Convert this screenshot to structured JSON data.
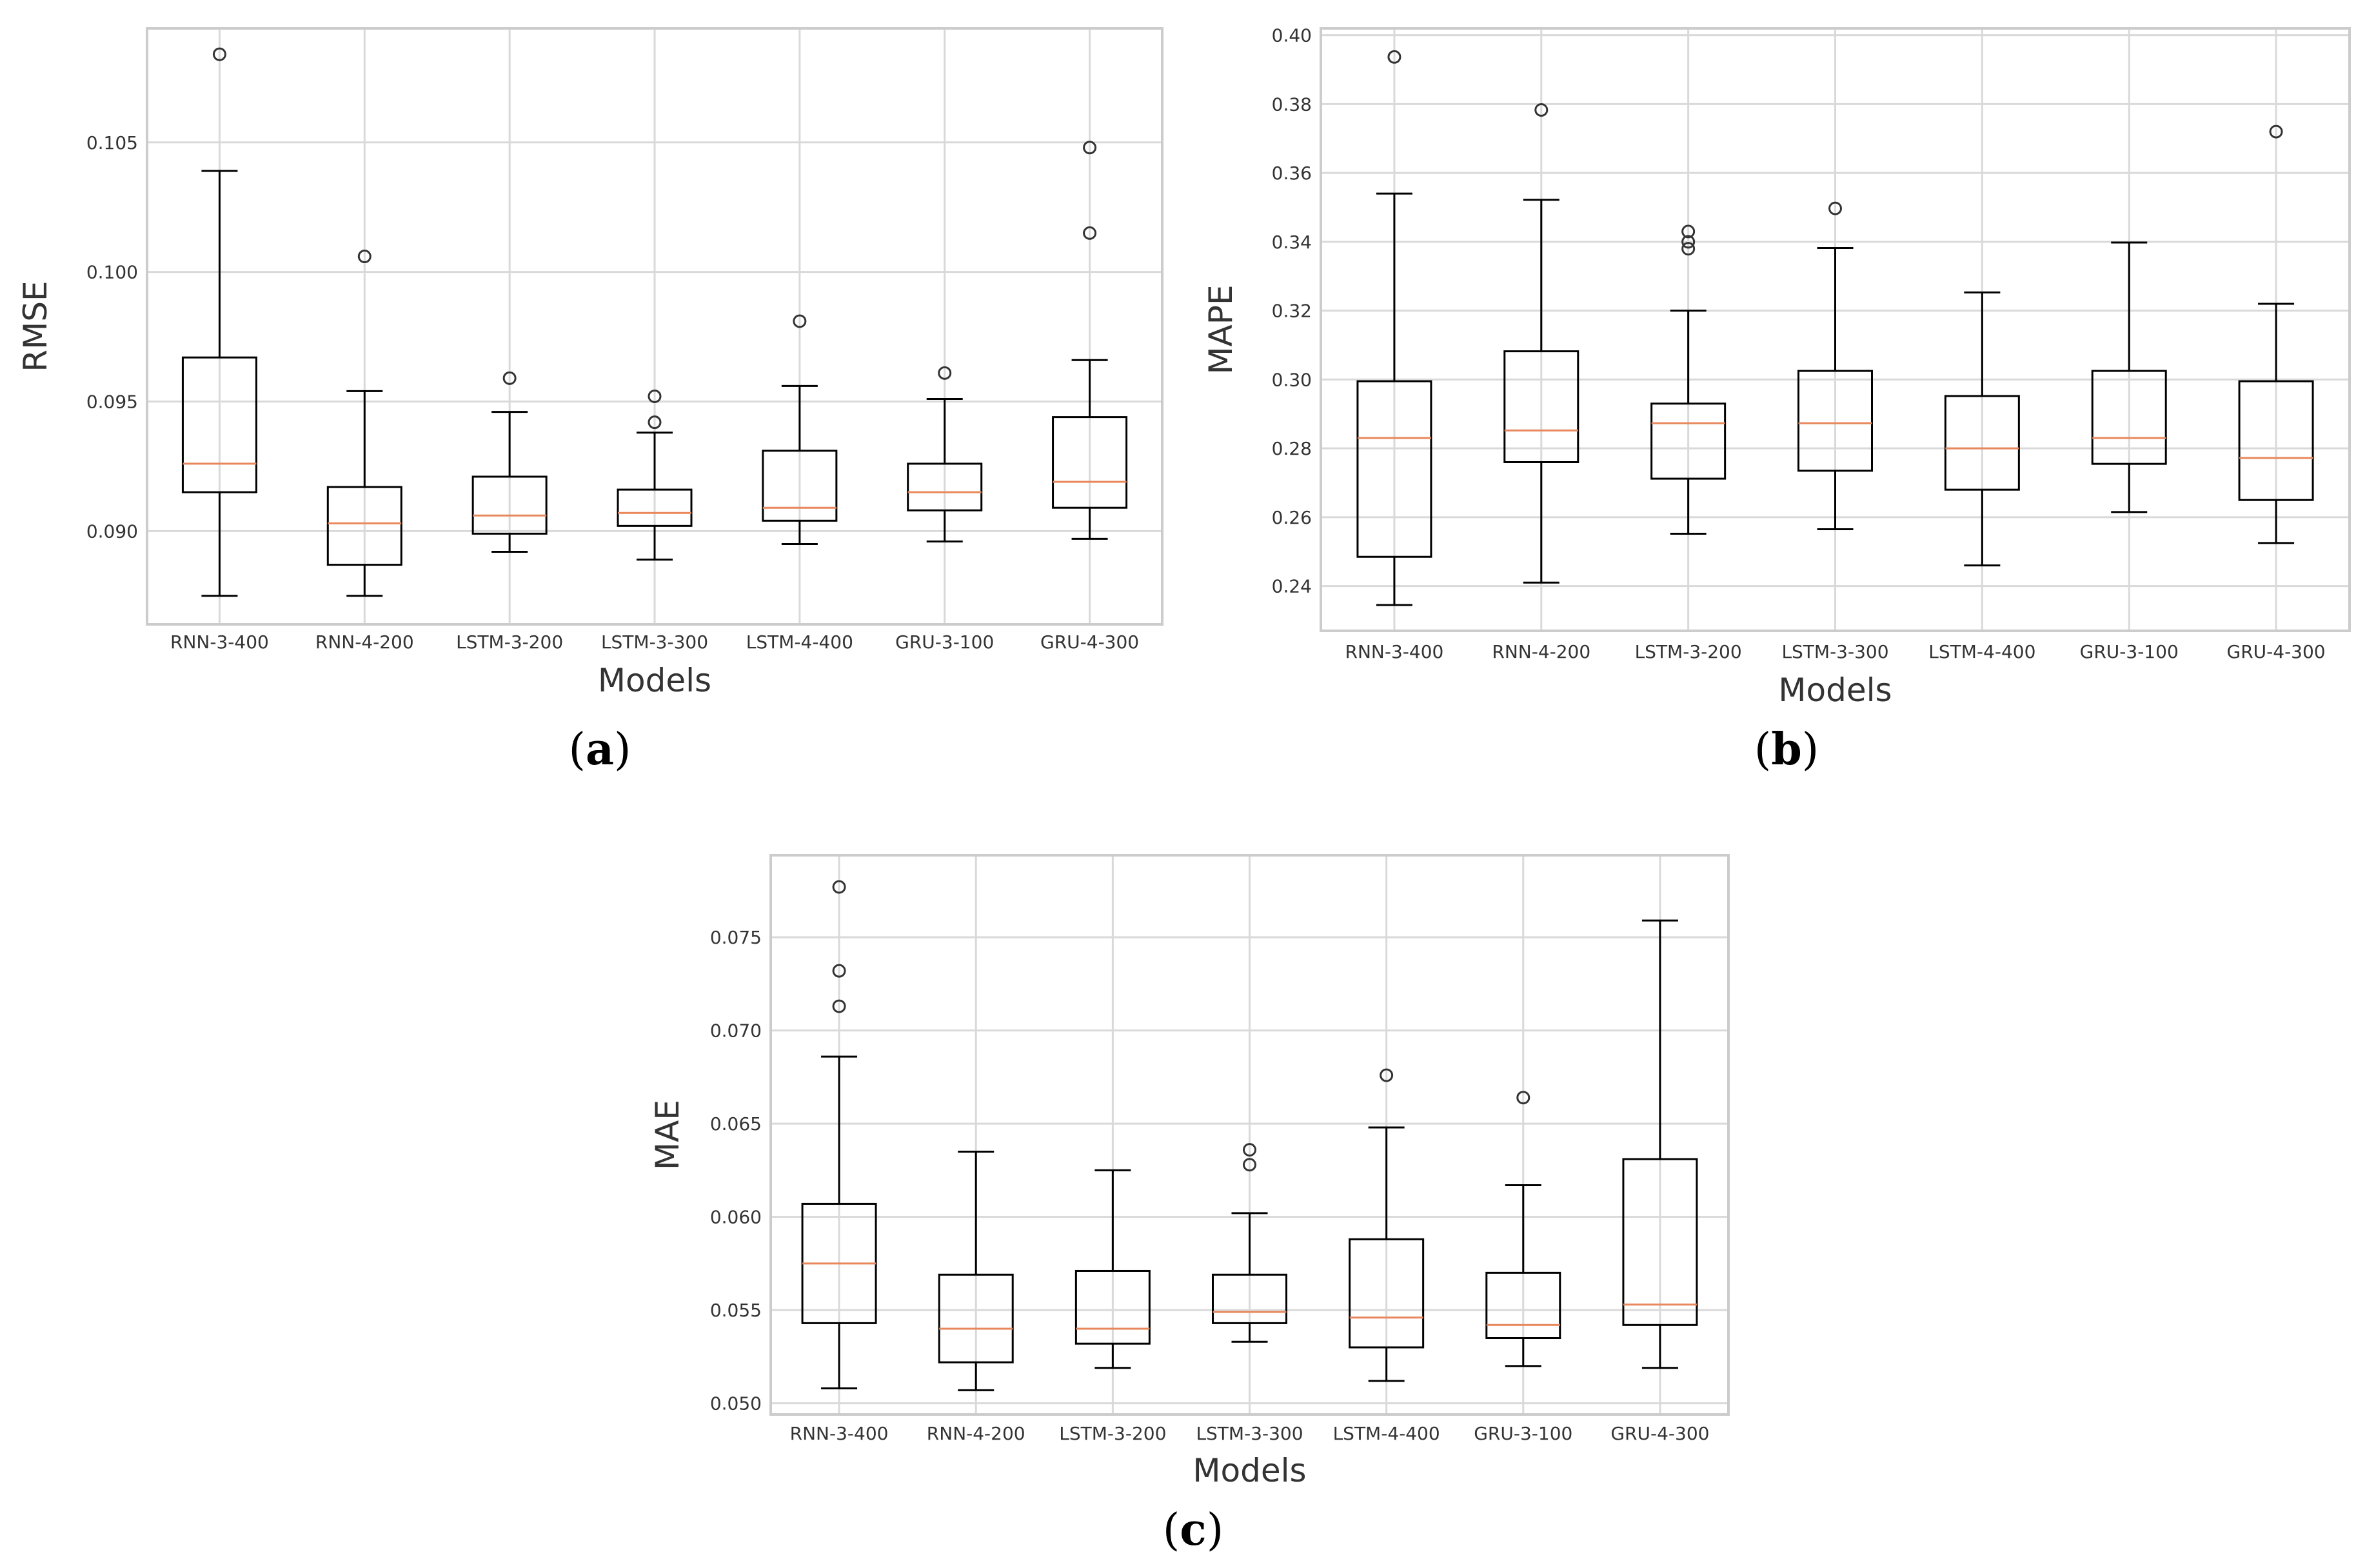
{
  "colors": {
    "median": "#e8875b",
    "box": "#000000",
    "grid": "#d9d9d9",
    "frame": "#cccccc"
  },
  "chart_data": [
    {
      "type": "box",
      "id": "a",
      "caption": "a",
      "xlabel": "Models",
      "ylabel": "RMSE",
      "ylim": [
        0.0864,
        0.1094
      ],
      "yticks": [
        0.09,
        0.095,
        0.1,
        0.105
      ],
      "ytick_labels": [
        "0.090",
        "0.095",
        "0.100",
        "0.105"
      ],
      "categories": [
        "RNN-3-400",
        "RNN-4-200",
        "LSTM-3-200",
        "LSTM-3-300",
        "LSTM-4-400",
        "GRU-3-100",
        "GRU-4-300"
      ],
      "boxes": [
        {
          "whislo": 0.0875,
          "q1": 0.0915,
          "med": 0.0926,
          "q3": 0.0967,
          "whishi": 0.1039,
          "fliers": [
            0.1084
          ]
        },
        {
          "whislo": 0.0875,
          "q1": 0.0887,
          "med": 0.0903,
          "q3": 0.0917,
          "whishi": 0.0954,
          "fliers": [
            0.1006
          ]
        },
        {
          "whislo": 0.0892,
          "q1": 0.0899,
          "med": 0.0906,
          "q3": 0.0921,
          "whishi": 0.0946,
          "fliers": [
            0.0959
          ]
        },
        {
          "whislo": 0.0889,
          "q1": 0.0902,
          "med": 0.0907,
          "q3": 0.0916,
          "whishi": 0.0938,
          "fliers": [
            0.0942,
            0.0952
          ]
        },
        {
          "whislo": 0.0895,
          "q1": 0.0904,
          "med": 0.0909,
          "q3": 0.0931,
          "whishi": 0.0956,
          "fliers": [
            0.0981
          ]
        },
        {
          "whislo": 0.0896,
          "q1": 0.0908,
          "med": 0.0915,
          "q3": 0.0926,
          "whishi": 0.0951,
          "fliers": [
            0.0961
          ]
        },
        {
          "whislo": 0.0897,
          "q1": 0.0909,
          "med": 0.0919,
          "q3": 0.0944,
          "whishi": 0.0966,
          "fliers": [
            0.1015,
            0.1048
          ]
        }
      ]
    },
    {
      "type": "box",
      "id": "b",
      "caption": "b",
      "xlabel": "Models",
      "ylabel": "MAPE",
      "ylim": [
        0.227,
        0.402
      ],
      "yticks": [
        0.24,
        0.26,
        0.28,
        0.3,
        0.32,
        0.34,
        0.36,
        0.38,
        0.4
      ],
      "ytick_labels": [
        "0.24",
        "0.26",
        "0.28",
        "0.30",
        "0.32",
        "0.34",
        "0.36",
        "0.38",
        "0.40"
      ],
      "categories": [
        "RNN-3-400",
        "RNN-4-200",
        "LSTM-3-200",
        "LSTM-3-300",
        "LSTM-4-400",
        "GRU-3-100",
        "GRU-4-300"
      ],
      "boxes": [
        {
          "whislo": 0.2345,
          "q1": 0.2485,
          "med": 0.283,
          "q3": 0.2995,
          "whishi": 0.354,
          "fliers": [
            0.3937
          ]
        },
        {
          "whislo": 0.241,
          "q1": 0.276,
          "med": 0.2852,
          "q3": 0.3082,
          "whishi": 0.3522,
          "fliers": [
            0.3783
          ]
        },
        {
          "whislo": 0.2552,
          "q1": 0.2712,
          "med": 0.2873,
          "q3": 0.293,
          "whishi": 0.32,
          "fliers": [
            0.338,
            0.34,
            0.343
          ]
        },
        {
          "whislo": 0.2565,
          "q1": 0.2735,
          "med": 0.2873,
          "q3": 0.3025,
          "whishi": 0.3382,
          "fliers": [
            0.3497
          ]
        },
        {
          "whislo": 0.246,
          "q1": 0.268,
          "med": 0.28,
          "q3": 0.2952,
          "whishi": 0.3253,
          "fliers": []
        },
        {
          "whislo": 0.2615,
          "q1": 0.2755,
          "med": 0.283,
          "q3": 0.3025,
          "whishi": 0.3398,
          "fliers": []
        },
        {
          "whislo": 0.2525,
          "q1": 0.265,
          "med": 0.2772,
          "q3": 0.2995,
          "whishi": 0.322,
          "fliers": [
            0.372
          ]
        }
      ]
    },
    {
      "type": "box",
      "id": "c",
      "caption": "c",
      "xlabel": "Models",
      "ylabel": "MAE",
      "ylim": [
        0.0494,
        0.0794
      ],
      "yticks": [
        0.05,
        0.055,
        0.06,
        0.065,
        0.07,
        0.075
      ],
      "ytick_labels": [
        "0.050",
        "0.055",
        "0.060",
        "0.065",
        "0.070",
        "0.075"
      ],
      "categories": [
        "RNN-3-400",
        "RNN-4-200",
        "LSTM-3-200",
        "LSTM-3-300",
        "LSTM-4-400",
        "GRU-3-100",
        "GRU-4-300"
      ],
      "boxes": [
        {
          "whislo": 0.0508,
          "q1": 0.0543,
          "med": 0.0575,
          "q3": 0.0607,
          "whishi": 0.0686,
          "fliers": [
            0.0713,
            0.0732,
            0.0777
          ]
        },
        {
          "whislo": 0.0507,
          "q1": 0.0522,
          "med": 0.054,
          "q3": 0.0569,
          "whishi": 0.0635,
          "fliers": []
        },
        {
          "whislo": 0.0519,
          "q1": 0.0532,
          "med": 0.054,
          "q3": 0.0571,
          "whishi": 0.0625,
          "fliers": []
        },
        {
          "whislo": 0.0533,
          "q1": 0.0543,
          "med": 0.0549,
          "q3": 0.0569,
          "whishi": 0.0602,
          "fliers": [
            0.0628,
            0.0636
          ]
        },
        {
          "whislo": 0.0512,
          "q1": 0.053,
          "med": 0.0546,
          "q3": 0.0588,
          "whishi": 0.0648,
          "fliers": [
            0.0676
          ]
        },
        {
          "whislo": 0.052,
          "q1": 0.0535,
          "med": 0.0542,
          "q3": 0.057,
          "whishi": 0.0617,
          "fliers": [
            0.0664
          ]
        },
        {
          "whislo": 0.0519,
          "q1": 0.0542,
          "med": 0.0553,
          "q3": 0.0631,
          "whishi": 0.0759,
          "fliers": []
        }
      ]
    }
  ]
}
